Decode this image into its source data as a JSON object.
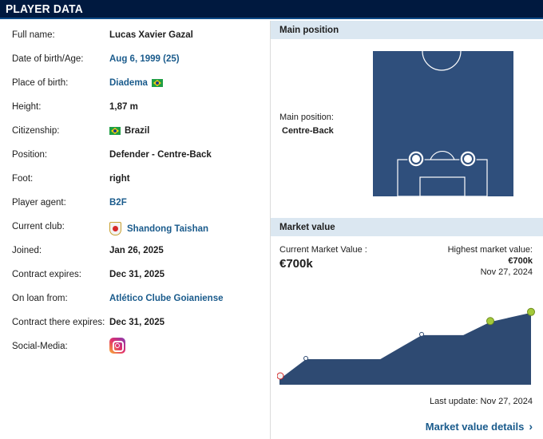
{
  "header": {
    "title": "PLAYER DATA"
  },
  "player": {
    "rows": [
      {
        "label": "Full name:",
        "value": "Lucas Xavier Gazal"
      },
      {
        "label": "Date of birth/Age:",
        "value": "Aug 6, 1999 (25)"
      },
      {
        "label": "Place of birth:",
        "value": "Diadema"
      },
      {
        "label": "Height:",
        "value": "1,87 m"
      },
      {
        "label": "Citizenship:",
        "value": "Brazil"
      },
      {
        "label": "Position:",
        "value": "Defender - Centre-Back"
      },
      {
        "label": "Foot:",
        "value": "right"
      },
      {
        "label": "Player agent:",
        "value": "B2F"
      },
      {
        "label": "Current club:",
        "value": "Shandong Taishan"
      },
      {
        "label": "Joined:",
        "value": "Jan 26, 2025"
      },
      {
        "label": "Contract expires:",
        "value": "Dec 31, 2025"
      },
      {
        "label": "On loan from:",
        "value": "Atlético Clube Goianiense"
      },
      {
        "label": "Contract there expires:",
        "value": "Dec 31, 2025"
      },
      {
        "label": "Social-Media:",
        "value": ""
      }
    ]
  },
  "main_position": {
    "header": "Main position",
    "label": "Main position:",
    "value": "Centre-Back"
  },
  "market_value": {
    "header": "Market value",
    "current_label": "Current Market Value :",
    "current_value": "€700k",
    "highest_label": "Highest market value:",
    "highest_value": "€700k",
    "highest_date": "Nov 27, 2024",
    "last_update": "Last update: Nov 27, 2024",
    "details_link": "Market value details"
  },
  "chart_data": {
    "type": "area",
    "points": [
      0.0,
      0.24,
      0.24,
      0.24,
      0.53,
      0.53,
      0.53,
      0.69,
      0.8
    ]
  },
  "colors": {
    "header_bg": "#00193f",
    "panel_header_bg": "#dbe7f1",
    "link": "#1a5b8c",
    "pitch": "#2f4f7c",
    "chart_fill": "#2e4a72"
  }
}
